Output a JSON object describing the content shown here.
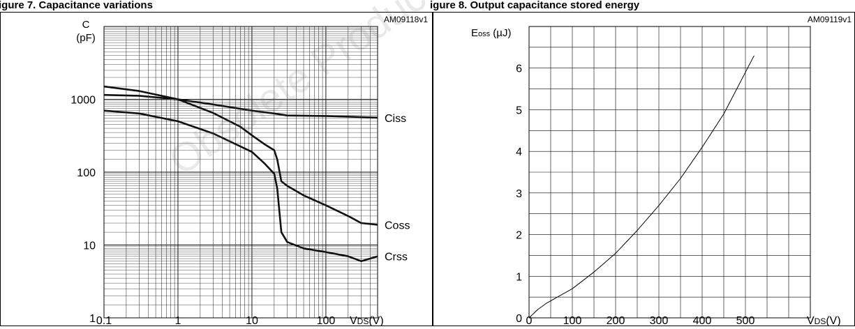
{
  "header": {
    "left_caption_fragment": "igure 7.   Capacitance variations",
    "right_caption_fragment": "igure 8.   Output capacitance stored energy"
  },
  "watermark": "Obsolete Product(s) - Obsolete Product(s)",
  "chart_data": [
    {
      "type": "line",
      "id_label": "AM09118v1",
      "ylabel_line1": "C",
      "ylabel_line2": "(pF)",
      "xlabel": "VDS(V)",
      "xlabel_main": "V",
      "xlabel_sub": "DS",
      "xlabel_unit": "(V)",
      "x_scale": "log",
      "y_scale": "log",
      "xlim": [
        0.1,
        500
      ],
      "ylim": [
        1,
        10000
      ],
      "x_ticks": [
        "0.1",
        "1",
        "10",
        "100"
      ],
      "y_ticks": [
        "1",
        "10",
        "100",
        "1000"
      ],
      "grid": true,
      "series": [
        {
          "name": "Ciss",
          "x": [
            0.1,
            0.3,
            1,
            3,
            10,
            20,
            30,
            100,
            300,
            500
          ],
          "y": [
            1150,
            1120,
            1000,
            850,
            700,
            640,
            600,
            590,
            570,
            560
          ]
        },
        {
          "name": "Coss",
          "x": [
            0.1,
            0.3,
            1,
            3,
            7,
            10,
            15,
            20,
            22,
            25,
            30,
            50,
            100,
            200,
            300,
            500
          ],
          "y": [
            1500,
            1300,
            1000,
            650,
            420,
            320,
            240,
            200,
            150,
            75,
            65,
            48,
            35,
            25,
            20,
            19
          ]
        },
        {
          "name": "Crss",
          "x": [
            0.1,
            0.3,
            1,
            3,
            10,
            15,
            20,
            22,
            25,
            30,
            50,
            100,
            200,
            300,
            500
          ],
          "y": [
            700,
            640,
            500,
            340,
            190,
            130,
            95,
            60,
            15,
            11,
            9,
            8,
            7,
            6,
            7
          ]
        }
      ]
    },
    {
      "type": "line",
      "id_label": "AM09119v1",
      "ylabel_main": "E",
      "ylabel_sub": "oss",
      "ylabel_unit": " (µJ)",
      "xlabel": "VDS(V)",
      "xlabel_main": "V",
      "xlabel_sub": "DS",
      "xlabel_unit": "(V)",
      "x_scale": "linear",
      "y_scale": "linear",
      "xlim": [
        0,
        650
      ],
      "ylim": [
        0,
        7
      ],
      "x_ticks": [
        "0",
        "100",
        "200",
        "300",
        "400",
        "500"
      ],
      "y_ticks": [
        "0",
        "1",
        "2",
        "3",
        "4",
        "5",
        "6"
      ],
      "grid": true,
      "series": [
        {
          "x": [
            0,
            20,
            40,
            100,
            150,
            200,
            250,
            300,
            350,
            400,
            450,
            500,
            520
          ],
          "y": [
            0,
            0.2,
            0.35,
            0.7,
            1.1,
            1.55,
            2.1,
            2.7,
            3.35,
            4.1,
            4.9,
            5.9,
            6.3
          ]
        }
      ]
    }
  ]
}
